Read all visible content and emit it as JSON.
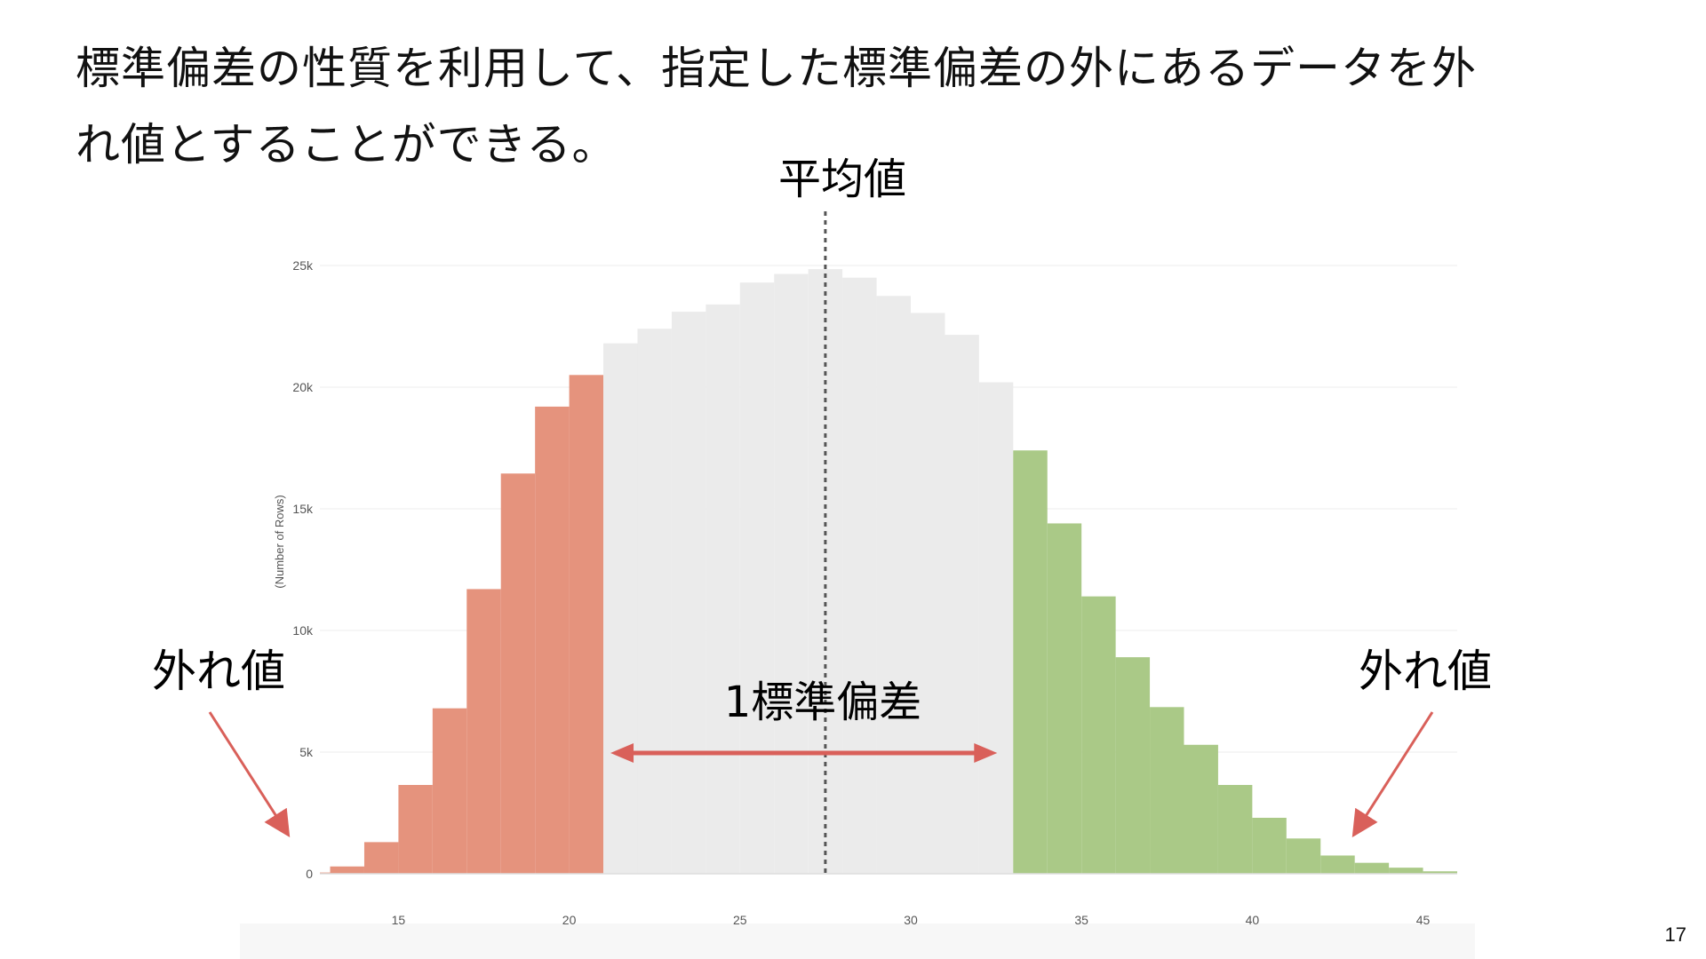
{
  "slide": {
    "headline_lines": [
      "標準偏差の性質を利用して、指定した標準偏差の外にあるデータを外",
      "れ値とすることができる。"
    ],
    "page_number": "17"
  },
  "annotations": {
    "mean_label": "平均値",
    "outlier_left_label": "外れ値",
    "outlier_right_label": "外れ値",
    "std_label": "1標準偏差"
  },
  "colors": {
    "low_outlier": "#e5937d",
    "within_one_sd": "#ebebeb",
    "high_outlier": "#aac987",
    "arrow": "#d9605a",
    "mean_line": "#555555"
  },
  "chart_data": {
    "type": "bar",
    "title": "",
    "xlabel": "",
    "ylabel": "(Number of Rows)",
    "xlim": [
      12.7,
      46.0
    ],
    "ylim": [
      0,
      25000
    ],
    "xticks": [
      15,
      20,
      25,
      30,
      35,
      40,
      45
    ],
    "yticks": [
      0,
      5000,
      10000,
      15000,
      20000,
      25000
    ],
    "ytick_labels": [
      "0",
      "5k",
      "10k",
      "15k",
      "20k",
      "25k"
    ],
    "grid": true,
    "mean": 27.5,
    "std_band": [
      21.0,
      33.0
    ],
    "bin_width": 1,
    "bins": [
      {
        "x0": 12.0,
        "value": 50,
        "group": "low"
      },
      {
        "x0": 13.0,
        "value": 300,
        "group": "low"
      },
      {
        "x0": 14.0,
        "value": 1300,
        "group": "low"
      },
      {
        "x0": 15.0,
        "value": 3650,
        "group": "low"
      },
      {
        "x0": 16.0,
        "value": 6800,
        "group": "low"
      },
      {
        "x0": 17.0,
        "value": 11700,
        "group": "low"
      },
      {
        "x0": 18.0,
        "value": 16450,
        "group": "low"
      },
      {
        "x0": 19.0,
        "value": 19200,
        "group": "low"
      },
      {
        "x0": 20.0,
        "value": 20500,
        "group": "low"
      },
      {
        "x0": 21.0,
        "value": 21800,
        "group": "mid"
      },
      {
        "x0": 22.0,
        "value": 22400,
        "group": "mid"
      },
      {
        "x0": 23.0,
        "value": 23100,
        "group": "mid"
      },
      {
        "x0": 24.0,
        "value": 23400,
        "group": "mid"
      },
      {
        "x0": 25.0,
        "value": 24300,
        "group": "mid"
      },
      {
        "x0": 26.0,
        "value": 24650,
        "group": "mid"
      },
      {
        "x0": 27.0,
        "value": 24850,
        "group": "mid"
      },
      {
        "x0": 28.0,
        "value": 24500,
        "group": "mid"
      },
      {
        "x0": 29.0,
        "value": 23750,
        "group": "mid"
      },
      {
        "x0": 30.0,
        "value": 23050,
        "group": "mid"
      },
      {
        "x0": 31.0,
        "value": 22150,
        "group": "mid"
      },
      {
        "x0": 32.0,
        "value": 20200,
        "group": "mid"
      },
      {
        "x0": 33.0,
        "value": 17400,
        "group": "high"
      },
      {
        "x0": 34.0,
        "value": 14400,
        "group": "high"
      },
      {
        "x0": 35.0,
        "value": 11400,
        "group": "high"
      },
      {
        "x0": 36.0,
        "value": 8900,
        "group": "high"
      },
      {
        "x0": 37.0,
        "value": 6850,
        "group": "high"
      },
      {
        "x0": 38.0,
        "value": 5300,
        "group": "high"
      },
      {
        "x0": 39.0,
        "value": 3650,
        "group": "high"
      },
      {
        "x0": 40.0,
        "value": 2300,
        "group": "high"
      },
      {
        "x0": 41.0,
        "value": 1450,
        "group": "high"
      },
      {
        "x0": 42.0,
        "value": 750,
        "group": "high"
      },
      {
        "x0": 43.0,
        "value": 450,
        "group": "high"
      },
      {
        "x0": 44.0,
        "value": 250,
        "group": "high"
      },
      {
        "x0": 45.0,
        "value": 100,
        "group": "high"
      }
    ]
  }
}
